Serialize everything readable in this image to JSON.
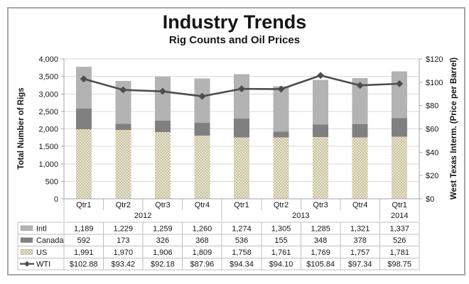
{
  "header": {
    "title": "Industry Trends",
    "subtitle": "Rig Counts and Oil Prices"
  },
  "chart_data": {
    "type": "bar",
    "subtype": "stacked-bar-with-line-overlay",
    "categories": [
      "Qtr1",
      "Qtr2",
      "Qtr3",
      "Qtr4",
      "Qtr1",
      "Qtr2",
      "Qtr3",
      "Qtr4",
      "Qtr1"
    ],
    "year_groups": [
      {
        "label": "2012",
        "span": 4
      },
      {
        "label": "2013",
        "span": 4
      },
      {
        "label": "2014",
        "span": 1
      }
    ],
    "series": [
      {
        "name": "US",
        "type": "bar",
        "stack_order": "bottom",
        "color": "#c6c09a",
        "pattern": "checker",
        "values": [
          1991,
          1970,
          1906,
          1809,
          1758,
          1761,
          1769,
          1757,
          1781
        ]
      },
      {
        "name": "Canada",
        "type": "bar",
        "stack_order": "middle",
        "color": "#808080",
        "values": [
          592,
          173,
          326,
          368,
          536,
          155,
          348,
          378,
          526
        ]
      },
      {
        "name": "Intl",
        "type": "bar",
        "stack_order": "top",
        "color": "#b3b3b3",
        "values": [
          1189,
          1229,
          1259,
          1260,
          1274,
          1305,
          1285,
          1321,
          1337
        ]
      },
      {
        "name": "WTI",
        "type": "line",
        "axis": "right",
        "color": "#4d4d4d",
        "marker": "diamond",
        "values": [
          102.88,
          93.42,
          92.18,
          87.96,
          94.34,
          94.1,
          105.84,
          97.34,
          98.75
        ]
      }
    ],
    "left_axis": {
      "title": "Total Number of Rigs",
      "min": 0,
      "max": 4000,
      "step": 500,
      "tick_labels": [
        "0",
        "500",
        "1,000",
        "1,500",
        "2,000",
        "2,500",
        "3,000",
        "3,500",
        "4,000"
      ]
    },
    "right_axis": {
      "title": "West Texas Interm. (Price per Barrel)",
      "min": 0,
      "max": 120,
      "step": 20,
      "tick_labels": [
        "$0",
        "$20",
        "$40",
        "$60",
        "$80",
        "$100",
        "$120"
      ]
    },
    "grid": true,
    "legend_position": "data-table-left",
    "data_table": {
      "rows": [
        {
          "label": "Intl",
          "key": "bar",
          "color": "#b3b3b3",
          "values": [
            "1,189",
            "1,229",
            "1,259",
            "1,260",
            "1,274",
            "1,305",
            "1,285",
            "1,321",
            "1,337"
          ]
        },
        {
          "label": "Canada",
          "key": "bar",
          "color": "#808080",
          "values": [
            "592",
            "173",
            "326",
            "368",
            "536",
            "155",
            "348",
            "378",
            "526"
          ]
        },
        {
          "label": "US",
          "key": "bar",
          "color": "#c6c09a",
          "pattern": "checker",
          "values": [
            "1,991",
            "1,970",
            "1,906",
            "1,809",
            "1,758",
            "1,761",
            "1,769",
            "1,757",
            "1,781"
          ]
        },
        {
          "label": "WTI",
          "key": "line",
          "color": "#4d4d4d",
          "values": [
            "$102.88",
            "$93.42",
            "$92.18",
            "$87.96",
            "$94.34",
            "$94.10",
            "$105.84",
            "$97.34",
            "$98.75"
          ]
        }
      ]
    }
  },
  "colors": {
    "frame_border": "#a6a6a6",
    "gridline": "#d9d9d9",
    "axis_line": "#a6a6a6",
    "table_border": "#bfbfbf",
    "us_pattern_dark": "#c6c09a",
    "us_pattern_light": "#eae7d6",
    "line": "#4d4d4d",
    "text": "#151515"
  }
}
